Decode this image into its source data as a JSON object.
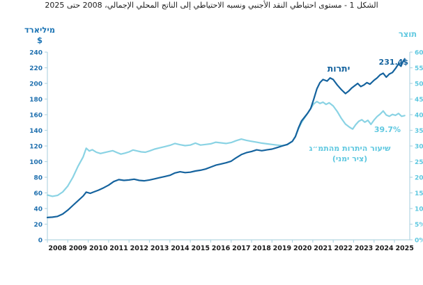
{
  "title": "الشكل 1 - مستوى احتياطي النقد الأجنبي ونسبه الاحتياطي إلى الناتج المحلي الإجمالي، 2008 حتى 2025",
  "chart_data": {
    "type": "line",
    "grid": false,
    "legend_position": "inline-annotations",
    "x_axis": {
      "range": [
        2008,
        2025.75
      ],
      "tick_labels": [
        "2008",
        "2009",
        "2010",
        "2011",
        "2012",
        "2013",
        "2014",
        "2015",
        "2016",
        "2017",
        "2018",
        "2019",
        "2020",
        "2021",
        "2022",
        "2023",
        "2024",
        "2025"
      ]
    },
    "left_axis": {
      "title_line1": "מיליארד",
      "title_line2": "$",
      "range": [
        0,
        240
      ],
      "tick_step": 20,
      "tick_labels": [
        "0",
        "20",
        "40",
        "60",
        "80",
        "100",
        "120",
        "140",
        "160",
        "180",
        "200",
        "220",
        "240"
      ]
    },
    "right_axis": {
      "title": "תוצר",
      "range": [
        0,
        60
      ],
      "tick_step": 5,
      "tick_labels": [
        "0%",
        "5%",
        "10%",
        "15%",
        "20%",
        "25%",
        "30%",
        "35%",
        "40%",
        "45%",
        "50%",
        "55%",
        "60%"
      ]
    },
    "colors": {
      "reserves_line": "#15639e",
      "ratio_line": "#8ad3e4",
      "ratio_label": "#5fc8e0",
      "axis_line": "#b3d6e2",
      "left_tick_label": "#1e6fae",
      "right_tick_label": "#5fc8e0",
      "x_tick_label": "#1a1a1a",
      "axis_title_blue": "#1e75b5"
    },
    "series": [
      {
        "id": "reserves",
        "name": "יתרות",
        "axis": "left",
        "units": "billion USD",
        "color": "#15639e",
        "label_color": "#15639e",
        "end_label": "231.4$",
        "end_value": 231.4,
        "points": [
          [
            2008.0,
            28.5
          ],
          [
            2008.25,
            29
          ],
          [
            2008.5,
            30
          ],
          [
            2008.75,
            33
          ],
          [
            2009.0,
            38
          ],
          [
            2009.25,
            44
          ],
          [
            2009.5,
            50
          ],
          [
            2009.75,
            56
          ],
          [
            2009.9,
            61
          ],
          [
            2010.1,
            59.5
          ],
          [
            2010.25,
            61
          ],
          [
            2010.5,
            63.5
          ],
          [
            2010.75,
            66.5
          ],
          [
            2011.0,
            70
          ],
          [
            2011.25,
            74.5
          ],
          [
            2011.5,
            77
          ],
          [
            2011.75,
            76
          ],
          [
            2012.0,
            76.5
          ],
          [
            2012.25,
            77.5
          ],
          [
            2012.5,
            76
          ],
          [
            2012.75,
            75.5
          ],
          [
            2013.0,
            76.5
          ],
          [
            2013.25,
            78
          ],
          [
            2013.5,
            79.5
          ],
          [
            2013.75,
            81
          ],
          [
            2014.0,
            82.5
          ],
          [
            2014.25,
            85.5
          ],
          [
            2014.5,
            87
          ],
          [
            2014.75,
            86
          ],
          [
            2015.0,
            86.5
          ],
          [
            2015.25,
            88
          ],
          [
            2015.5,
            89
          ],
          [
            2015.75,
            90.5
          ],
          [
            2016.0,
            93
          ],
          [
            2016.25,
            95.5
          ],
          [
            2016.5,
            97
          ],
          [
            2016.75,
            98.5
          ],
          [
            2017.0,
            100.5
          ],
          [
            2017.25,
            105
          ],
          [
            2017.5,
            109
          ],
          [
            2017.75,
            111.5
          ],
          [
            2018.0,
            113
          ],
          [
            2018.25,
            115
          ],
          [
            2018.5,
            114
          ],
          [
            2018.75,
            115
          ],
          [
            2019.0,
            116
          ],
          [
            2019.25,
            118
          ],
          [
            2019.5,
            120
          ],
          [
            2019.75,
            122
          ],
          [
            2020.0,
            126
          ],
          [
            2020.15,
            132
          ],
          [
            2020.3,
            143
          ],
          [
            2020.45,
            152
          ],
          [
            2020.6,
            157
          ],
          [
            2020.75,
            162
          ],
          [
            2020.9,
            168
          ],
          [
            2021.05,
            180
          ],
          [
            2021.2,
            193
          ],
          [
            2021.35,
            201
          ],
          [
            2021.5,
            205
          ],
          [
            2021.7,
            203
          ],
          [
            2021.85,
            207
          ],
          [
            2022.0,
            205
          ],
          [
            2022.2,
            198
          ],
          [
            2022.4,
            192
          ],
          [
            2022.6,
            187
          ],
          [
            2022.75,
            190
          ],
          [
            2022.9,
            194
          ],
          [
            2023.05,
            197
          ],
          [
            2023.2,
            200
          ],
          [
            2023.35,
            196
          ],
          [
            2023.5,
            198
          ],
          [
            2023.65,
            201
          ],
          [
            2023.8,
            199
          ],
          [
            2024.0,
            204
          ],
          [
            2024.15,
            207
          ],
          [
            2024.3,
            211
          ],
          [
            2024.45,
            213
          ],
          [
            2024.6,
            208
          ],
          [
            2024.75,
            212
          ],
          [
            2024.9,
            214
          ],
          [
            2025.05,
            219
          ],
          [
            2025.2,
            225
          ],
          [
            2025.32,
            222
          ],
          [
            2025.42,
            228
          ],
          [
            2025.5,
            231.4
          ]
        ]
      },
      {
        "id": "ratio",
        "name": "שיעור היתרות מהתמ״ג",
        "name_line2": "(ציר ימני)",
        "axis": "right",
        "units": "% of GDP",
        "color": "#8ad3e4",
        "label_color": "#5fc8e0",
        "end_label": "39.7%",
        "end_value": 39.7,
        "points": [
          [
            2008.0,
            14.3
          ],
          [
            2008.25,
            13.9
          ],
          [
            2008.5,
            14.2
          ],
          [
            2008.75,
            15.3
          ],
          [
            2009.0,
            17.2
          ],
          [
            2009.25,
            20
          ],
          [
            2009.5,
            23.5
          ],
          [
            2009.75,
            26.5
          ],
          [
            2009.9,
            29.3
          ],
          [
            2010.05,
            28.4
          ],
          [
            2010.2,
            28.8
          ],
          [
            2010.4,
            28
          ],
          [
            2010.6,
            27.6
          ],
          [
            2010.8,
            27.9
          ],
          [
            2011.0,
            28.2
          ],
          [
            2011.2,
            28.5
          ],
          [
            2011.4,
            27.9
          ],
          [
            2011.6,
            27.4
          ],
          [
            2011.8,
            27.7
          ],
          [
            2012.0,
            28.1
          ],
          [
            2012.2,
            28.7
          ],
          [
            2012.4,
            28.4
          ],
          [
            2012.6,
            28.1
          ],
          [
            2012.8,
            28
          ],
          [
            2013.0,
            28.4
          ],
          [
            2013.25,
            29
          ],
          [
            2013.5,
            29.4
          ],
          [
            2013.75,
            29.8
          ],
          [
            2014.0,
            30.2
          ],
          [
            2014.25,
            30.8
          ],
          [
            2014.5,
            30.4
          ],
          [
            2014.75,
            30.1
          ],
          [
            2015.0,
            30.3
          ],
          [
            2015.25,
            30.9
          ],
          [
            2015.5,
            30.3
          ],
          [
            2015.75,
            30.5
          ],
          [
            2016.0,
            30.7
          ],
          [
            2016.25,
            31.2
          ],
          [
            2016.5,
            31
          ],
          [
            2016.75,
            30.8
          ],
          [
            2017.0,
            31.1
          ],
          [
            2017.25,
            31.7
          ],
          [
            2017.5,
            32.2
          ],
          [
            2017.75,
            31.8
          ],
          [
            2018.0,
            31.5
          ],
          [
            2018.25,
            31.2
          ],
          [
            2018.5,
            30.9
          ],
          [
            2018.75,
            30.7
          ],
          [
            2019.0,
            30.5
          ],
          [
            2019.25,
            30.3
          ],
          [
            2019.5,
            30.1
          ],
          [
            2019.75,
            30.4
          ],
          [
            2020.0,
            31.5
          ],
          [
            2020.15,
            33
          ],
          [
            2020.3,
            35.5
          ],
          [
            2020.45,
            37.5
          ],
          [
            2020.6,
            39
          ],
          [
            2020.75,
            40.5
          ],
          [
            2020.9,
            42
          ],
          [
            2021.05,
            43.5
          ],
          [
            2021.2,
            44.2
          ],
          [
            2021.35,
            43.6
          ],
          [
            2021.5,
            44
          ],
          [
            2021.65,
            43.3
          ],
          [
            2021.8,
            43.8
          ],
          [
            2022.0,
            42.8
          ],
          [
            2022.2,
            41
          ],
          [
            2022.4,
            38.8
          ],
          [
            2022.6,
            37
          ],
          [
            2022.8,
            36
          ],
          [
            2022.95,
            35.4
          ],
          [
            2023.1,
            36.8
          ],
          [
            2023.25,
            37.9
          ],
          [
            2023.4,
            38.4
          ],
          [
            2023.55,
            37.6
          ],
          [
            2023.7,
            38.2
          ],
          [
            2023.85,
            36.9
          ],
          [
            2024.0,
            38.3
          ],
          [
            2024.15,
            39.4
          ],
          [
            2024.3,
            40.2
          ],
          [
            2024.45,
            41.2
          ],
          [
            2024.6,
            39.9
          ],
          [
            2024.75,
            39.5
          ],
          [
            2024.9,
            40.1
          ],
          [
            2025.05,
            39.8
          ],
          [
            2025.2,
            40.4
          ],
          [
            2025.35,
            39.5
          ],
          [
            2025.5,
            39.7
          ]
        ]
      }
    ]
  }
}
